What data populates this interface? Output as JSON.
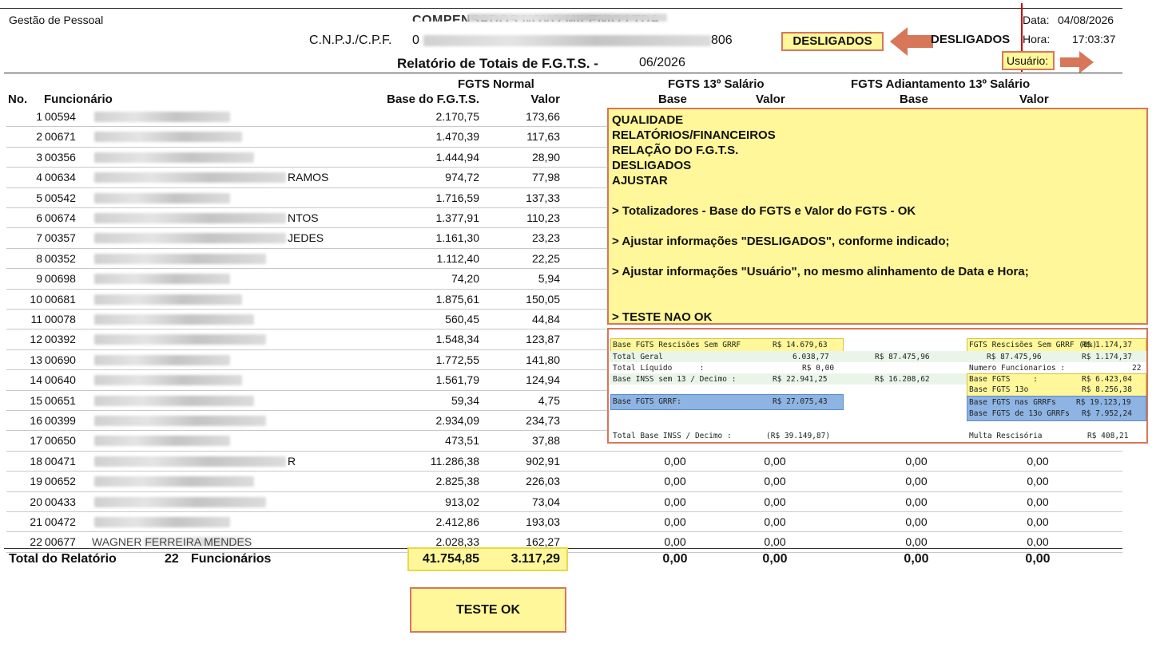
{
  "header": {
    "module": "Gestão de Pessoal",
    "company_name": "COMPENSADOS NOVO MILENIO LTDA",
    "cnpj_label": "C.N.P.J./C.P.F.",
    "cnpj_prefix": "0",
    "cnpj_suffix": "806",
    "report_title": "Relatório de Totais de F.G.T.S. -",
    "period": "06/2026",
    "date_label": "Data:",
    "date_value": "04/08/2026",
    "time_label": "Hora:",
    "time_value": "17:03:37",
    "user_label": "Usuário:",
    "desligados_box": "DESLIGADOS",
    "desligados_text": "DESLIGADOS"
  },
  "columns": {
    "no": "No.",
    "employee": "Funcionário",
    "group_normal": "FGTS Normal",
    "base_fgts": "Base do F.G.T.S.",
    "valor": "Valor",
    "group_13": "FGTS 13º Salário",
    "base": "Base",
    "valor13": "Valor",
    "group_adiant": "FGTS Adiantamento 13º Salário",
    "base_adiant": "Base",
    "valor_adiant": "Valor"
  },
  "rows": [
    {
      "no": "1",
      "code": "00594",
      "name": "",
      "base": "2.170,75",
      "valor": "173,66",
      "b13": "",
      "v13": "",
      "ba": "",
      "va": ""
    },
    {
      "no": "2",
      "code": "00671",
      "name": "",
      "base": "1.470,39",
      "valor": "117,63",
      "b13": "",
      "v13": "",
      "ba": "",
      "va": ""
    },
    {
      "no": "3",
      "code": "00356",
      "name": "",
      "base": "1.444,94",
      "valor": "28,90",
      "b13": "",
      "v13": "",
      "ba": "",
      "va": ""
    },
    {
      "no": "4",
      "code": "00634",
      "name": "RAMOS",
      "base": "974,72",
      "valor": "77,98",
      "b13": "",
      "v13": "",
      "ba": "",
      "va": ""
    },
    {
      "no": "5",
      "code": "00542",
      "name": "",
      "base": "1.716,59",
      "valor": "137,33",
      "b13": "",
      "v13": "",
      "ba": "",
      "va": ""
    },
    {
      "no": "6",
      "code": "00674",
      "name": "NTOS",
      "base": "1.377,91",
      "valor": "110,23",
      "b13": "",
      "v13": "",
      "ba": "",
      "va": ""
    },
    {
      "no": "7",
      "code": "00357",
      "name": "JEDES",
      "base": "1.161,30",
      "valor": "23,23",
      "b13": "",
      "v13": "",
      "ba": "",
      "va": ""
    },
    {
      "no": "8",
      "code": "00352",
      "name": "",
      "base": "1.112,40",
      "valor": "22,25",
      "b13": "",
      "v13": "",
      "ba": "",
      "va": ""
    },
    {
      "no": "9",
      "code": "00698",
      "name": "",
      "base": "74,20",
      "valor": "5,94",
      "b13": "",
      "v13": "",
      "ba": "",
      "va": ""
    },
    {
      "no": "10",
      "code": "00681",
      "name": "",
      "base": "1.875,61",
      "valor": "150,05",
      "b13": "",
      "v13": "",
      "ba": "",
      "va": ""
    },
    {
      "no": "11",
      "code": "00078",
      "name": "",
      "base": "560,45",
      "valor": "44,84",
      "b13": "",
      "v13": "",
      "ba": "",
      "va": ""
    },
    {
      "no": "12",
      "code": "00392",
      "name": "",
      "base": "1.548,34",
      "valor": "123,87",
      "b13": "",
      "v13": "",
      "ba": "",
      "va": ""
    },
    {
      "no": "13",
      "code": "00690",
      "name": "",
      "base": "1.772,55",
      "valor": "141,80",
      "b13": "",
      "v13": "",
      "ba": "",
      "va": ""
    },
    {
      "no": "14",
      "code": "00640",
      "name": "",
      "base": "1.561,79",
      "valor": "124,94",
      "b13": "",
      "v13": "",
      "ba": "",
      "va": ""
    },
    {
      "no": "15",
      "code": "00651",
      "name": "",
      "base": "59,34",
      "valor": "4,75",
      "b13": "",
      "v13": "",
      "ba": "",
      "va": ""
    },
    {
      "no": "16",
      "code": "00399",
      "name": "",
      "base": "2.934,09",
      "valor": "234,73",
      "b13": "",
      "v13": "",
      "ba": "",
      "va": ""
    },
    {
      "no": "17",
      "code": "00650",
      "name": "",
      "base": "473,51",
      "valor": "37,88",
      "b13": "",
      "v13": "",
      "ba": "",
      "va": ""
    },
    {
      "no": "18",
      "code": "00471",
      "name": "R",
      "base": "11.286,38",
      "valor": "902,91",
      "b13": "0,00",
      "v13": "0,00",
      "ba": "0,00",
      "va": "0,00"
    },
    {
      "no": "19",
      "code": "00652",
      "name": "",
      "base": "2.825,38",
      "valor": "226,03",
      "b13": "0,00",
      "v13": "0,00",
      "ba": "0,00",
      "va": "0,00"
    },
    {
      "no": "20",
      "code": "00433",
      "name": "",
      "base": "913,02",
      "valor": "73,04",
      "b13": "0,00",
      "v13": "0,00",
      "ba": "0,00",
      "va": "0,00"
    },
    {
      "no": "21",
      "code": "00472",
      "name": "",
      "base": "2.412,86",
      "valor": "193,03",
      "b13": "0,00",
      "v13": "0,00",
      "ba": "0,00",
      "va": "0,00"
    },
    {
      "no": "22",
      "code": "00677",
      "name": "WAGNER FERREIRA MENDES",
      "base": "2.028,33",
      "valor": "162,27",
      "b13": "0,00",
      "v13": "0,00",
      "ba": "0,00",
      "va": "0,00"
    }
  ],
  "totals": {
    "label": "Total do Relatório",
    "count": "22",
    "count_label": "Funcionários",
    "base": "41.754,85",
    "valor": "3.117,29",
    "b13": "0,00",
    "v13": "0,00",
    "ba": "0,00",
    "va": "0,00"
  },
  "note": {
    "lines": [
      "QUALIDADE",
      "RELATÓRIOS/FINANCEIROS",
      "RELAÇÃO DO F.G.T.S.",
      "DESLIGADOS",
      "AJUSTAR",
      "",
      "> Totalizadores - Base do FGTS e Valor do FGTS - OK",
      "",
      "> Ajustar informações \"DESLIGADOS\", conforme indicado;",
      "",
      "> Ajustar informações \"Usuário\", no mesmo alinhamento de Data e Hora;",
      "",
      "",
      "> TESTE NAO OK"
    ]
  },
  "summary": {
    "rescisoes_sem_grrf_label": "Base FGTS Rescisões Sem GRRF",
    "rescisoes_sem_grrf_value": "R$ 14.679,63",
    "fgts_rescisoes_label": "FGTS Rescisões Sem GRRF (8%)",
    "fgts_rescisoes_value": "R$ 1.174,37",
    "total_geral_label": "Total Geral",
    "total_geral_v1": "6.038,77",
    "total_geral_v2": "R$ 87.475,96",
    "total_geral_v3": "R$ 87.475,96",
    "total_geral_v4": "R$ 1.174,37",
    "total_liquido_label": "Total Líquido      :",
    "total_liquido_value": "R$ 0,00",
    "num_func_label": "Numero Funcionarios :",
    "num_func_value": "22",
    "inss_label": "Base INSS sem 13 / Decimo :",
    "inss_v1": "R$ 22.941,25",
    "inss_v2": "R$ 16.208,62",
    "base_fgts_label": "Base FGTS     :",
    "base_fgts_value": "R$ 6.423,04",
    "base_fgts13_label": "Base FGTS 13o",
    "base_fgts13_value": "R$ 8.256,38",
    "grrf_label": "Base FGTS GRRF:",
    "grrf_value": "R$ 27.075,43",
    "nas_grrfs_label": "Base FGTS nas GRRFs",
    "nas_grrfs_value": "R$ 19.123,19",
    "de13_grrfs_label": "Base FGTS de 13o GRRFs",
    "de13_grrfs_value": "R$ 7.952,24",
    "total_inss_label": "Total Base INSS / Decimo :",
    "total_inss_value": "(R$ 39.149,87)",
    "multa_label": "Multa Rescisória",
    "multa_value": "R$ 408,21"
  },
  "teste_ok": "TESTE OK",
  "colors": {
    "highlight": "#fff799",
    "border": "#d8765a",
    "arrow": "#d8765a",
    "blue": "#8db4e2"
  }
}
